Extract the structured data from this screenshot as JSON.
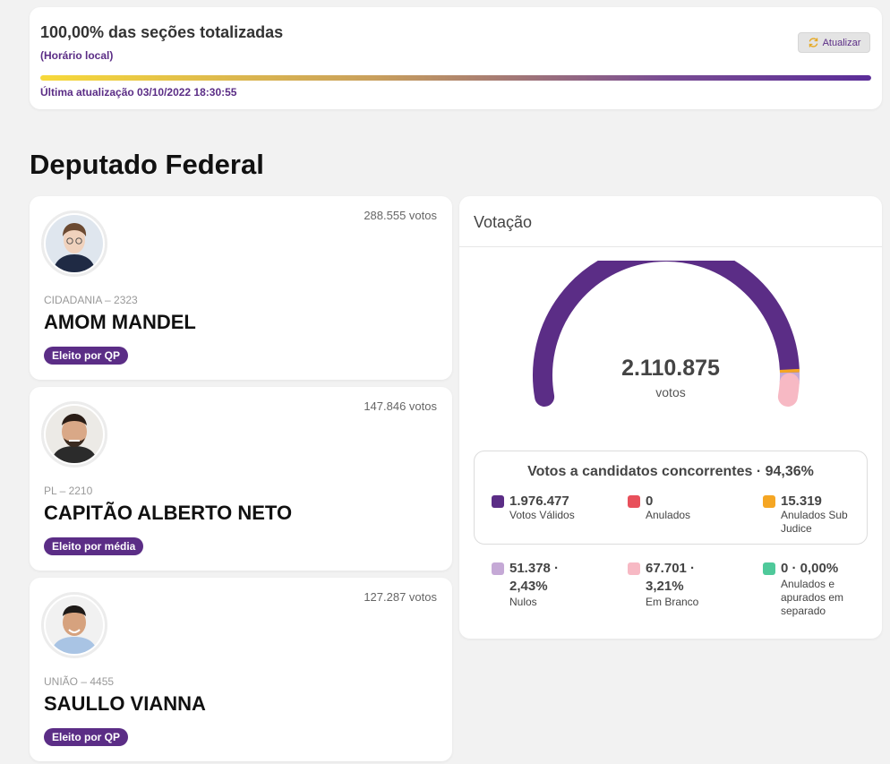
{
  "status": {
    "title": "100,00% das seções totalizadas",
    "subtitle": "(Horário local)",
    "refresh_label": "Atualizar",
    "progress_percent": 100,
    "last_update": "Última atualização 03/10/2022 18:30:55"
  },
  "section_title": "Deputado Federal",
  "candidates": [
    {
      "votes": "288.555 votos",
      "party": "CIDADANIA – 2323",
      "name": "AMOM MANDEL",
      "badge": "Eleito por QP"
    },
    {
      "votes": "147.846 votos",
      "party": "PL – 2210",
      "name": "CAPITÃO ALBERTO NETO",
      "badge": "Eleito por média"
    },
    {
      "votes": "127.287 votos",
      "party": "UNIÃO – 4455",
      "name": "SAULLO VIANNA",
      "badge": "Eleito por QP"
    }
  ],
  "votacao": {
    "title": "Votação",
    "total": "2.110.875",
    "total_unit": "votos",
    "gauge_shares": [
      {
        "name": "Votos Válidos",
        "value": 1976477,
        "color": "#5b2d86"
      },
      {
        "name": "Anulados",
        "value": 0,
        "color": "#e8505b"
      },
      {
        "name": "Anulados Sub Judice",
        "value": 15319,
        "color": "#f5a623"
      },
      {
        "name": "Nulos",
        "value": 51378,
        "color": "#c5a9d6"
      },
      {
        "name": "Em Branco",
        "value": 67701,
        "color": "#f7b9c4"
      }
    ],
    "valid_box_title": "Votos a candidatos concorrentes · 94,36%",
    "stats": {
      "validos": {
        "value": "1.976.477",
        "label": "Votos Válidos",
        "color": "#5b2d86"
      },
      "anulados": {
        "value": "0",
        "label": "Anulados",
        "color": "#e8505b"
      },
      "sub_judice": {
        "value": "15.319",
        "label": "Anulados Sub Judice",
        "color": "#f5a623"
      },
      "nulos": {
        "value": "51.378 · 2,43%",
        "label": "Nulos",
        "color": "#c5a9d6"
      },
      "branco": {
        "value": "67.701 · 3,21%",
        "label": "Em Branco",
        "color": "#f7b9c4"
      },
      "separado": {
        "value": "0 · 0,00%",
        "label": "Anulados e apurados em separado",
        "color": "#4fc99a"
      }
    }
  }
}
